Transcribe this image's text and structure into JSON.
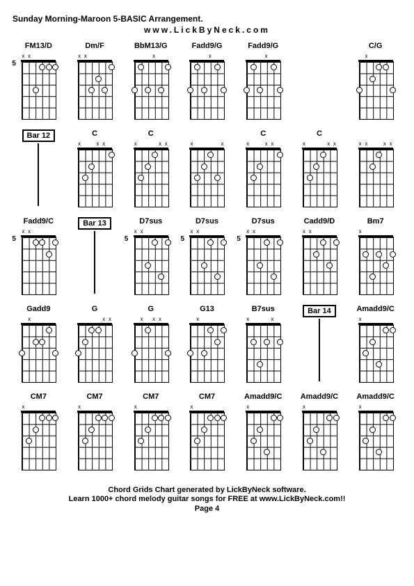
{
  "header": {
    "title": "Sunday Morning-Maroon 5-BASIC Arrangement.",
    "subtitle": "www.LickByNeck.com"
  },
  "footer": {
    "line1": "Chord Grids Chart generated by LickByNeck software.",
    "line2": "Learn 1000+ chord melody guitar songs for FREE at www.LickByNeck.com!!",
    "page": "Page 4"
  },
  "layout": {
    "columns": 7,
    "rows": 5,
    "grid_bg": "#ffffff",
    "line_color": "#000000"
  },
  "cells": [
    {
      "type": "chord",
      "label": "FM13/D",
      "fret": "5",
      "marks": [
        "x",
        "x",
        "",
        "",
        "",
        ""
      ],
      "dots": [
        [
          3,
          0
        ],
        [
          4,
          0
        ],
        [
          5,
          0
        ],
        [
          2,
          2
        ]
      ]
    },
    {
      "type": "chord",
      "label": "Dm/F",
      "fret": "",
      "marks": [
        "x",
        "x",
        "",
        "",
        "",
        ""
      ],
      "dots": [
        [
          2,
          2
        ],
        [
          3,
          1
        ],
        [
          4,
          2
        ],
        [
          5,
          0
        ]
      ]
    },
    {
      "type": "chord",
      "label": "BbM13/G",
      "fret": "",
      "marks": [
        "",
        "",
        "",
        "x",
        "",
        ""
      ],
      "dots": [
        [
          0,
          2
        ],
        [
          1,
          0
        ],
        [
          2,
          2
        ],
        [
          4,
          2
        ],
        [
          5,
          0
        ]
      ]
    },
    {
      "type": "chord",
      "label": "Fadd9/G",
      "fret": "",
      "marks": [
        "",
        "",
        "",
        "x",
        "",
        ""
      ],
      "dots": [
        [
          0,
          2
        ],
        [
          1,
          0
        ],
        [
          2,
          2
        ],
        [
          4,
          0
        ],
        [
          5,
          2
        ]
      ]
    },
    {
      "type": "chord",
      "label": "Fadd9/G",
      "fret": "",
      "marks": [
        "",
        "",
        "",
        "x",
        "",
        ""
      ],
      "dots": [
        [
          0,
          2
        ],
        [
          1,
          0
        ],
        [
          2,
          2
        ],
        [
          4,
          0
        ],
        [
          5,
          2
        ]
      ]
    },
    {
      "type": "empty"
    },
    {
      "type": "chord",
      "label": "C/G",
      "fret": "",
      "marks": [
        "",
        "x",
        "",
        "",
        "",
        ""
      ],
      "dots": [
        [
          0,
          2
        ],
        [
          2,
          1
        ],
        [
          3,
          0
        ],
        [
          4,
          0
        ],
        [
          5,
          2
        ]
      ]
    },
    {
      "type": "bar",
      "label": "Bar 12"
    },
    {
      "type": "chord",
      "label": "C",
      "fret": "",
      "marks": [
        "x",
        "",
        "",
        "x",
        "x",
        ""
      ],
      "dots": [
        [
          1,
          2
        ],
        [
          2,
          1
        ],
        [
          5,
          0
        ]
      ]
    },
    {
      "type": "chord",
      "label": "C",
      "fret": "",
      "marks": [
        "x",
        "",
        "",
        "",
        "x",
        "x"
      ],
      "dots": [
        [
          1,
          2
        ],
        [
          2,
          1
        ],
        [
          3,
          0
        ]
      ]
    },
    {
      "type": "chord",
      "label": "",
      "fret": "",
      "marks": [
        "x",
        "",
        "",
        "",
        "",
        "x"
      ],
      "dots": [
        [
          1,
          2
        ],
        [
          2,
          1
        ],
        [
          3,
          0
        ],
        [
          4,
          2
        ]
      ]
    },
    {
      "type": "chord",
      "label": "C",
      "fret": "",
      "marks": [
        "x",
        "",
        "",
        "x",
        "x",
        ""
      ],
      "dots": [
        [
          1,
          2
        ],
        [
          2,
          1
        ],
        [
          5,
          0
        ]
      ]
    },
    {
      "type": "chord",
      "label": "C",
      "fret": "",
      "marks": [
        "x",
        "",
        "",
        "",
        "x",
        "x"
      ],
      "dots": [
        [
          1,
          2
        ],
        [
          2,
          1
        ],
        [
          3,
          0
        ]
      ]
    },
    {
      "type": "chord",
      "label": "",
      "fret": "",
      "marks": [
        "x",
        "x",
        "",
        "",
        "x",
        "x"
      ],
      "dots": [
        [
          2,
          1
        ],
        [
          3,
          0
        ]
      ]
    },
    {
      "type": "chord",
      "label": "Fadd9/C",
      "fret": "5",
      "marks": [
        "x",
        "x",
        "",
        "",
        "",
        ""
      ],
      "dots": [
        [
          2,
          0
        ],
        [
          3,
          0
        ],
        [
          4,
          1
        ],
        [
          5,
          0
        ]
      ]
    },
    {
      "type": "bar",
      "label": "Bar 13"
    },
    {
      "type": "chord",
      "label": "D7sus",
      "fret": "5",
      "marks": [
        "x",
        "x",
        "",
        "",
        "",
        ""
      ],
      "dots": [
        [
          2,
          2
        ],
        [
          3,
          0
        ],
        [
          4,
          3
        ],
        [
          5,
          0
        ]
      ]
    },
    {
      "type": "chord",
      "label": "D7sus",
      "fret": "5",
      "marks": [
        "x",
        "x",
        "",
        "",
        "",
        ""
      ],
      "dots": [
        [
          2,
          2
        ],
        [
          3,
          0
        ],
        [
          4,
          3
        ],
        [
          5,
          0
        ]
      ]
    },
    {
      "type": "chord",
      "label": "D7sus",
      "fret": "5",
      "marks": [
        "x",
        "x",
        "",
        "",
        "",
        ""
      ],
      "dots": [
        [
          2,
          2
        ],
        [
          3,
          0
        ],
        [
          4,
          3
        ],
        [
          5,
          0
        ]
      ]
    },
    {
      "type": "chord",
      "label": "Cadd9/D",
      "fret": "",
      "marks": [
        "x",
        "x",
        "",
        "",
        "",
        ""
      ],
      "dots": [
        [
          2,
          1
        ],
        [
          3,
          0
        ],
        [
          4,
          2
        ],
        [
          5,
          0
        ]
      ]
    },
    {
      "type": "chord",
      "label": "Bm7",
      "fret": "",
      "marks": [
        "x",
        "",
        "",
        "",
        "",
        ""
      ],
      "dots": [
        [
          1,
          1
        ],
        [
          2,
          3
        ],
        [
          3,
          1
        ],
        [
          4,
          2
        ],
        [
          5,
          1
        ]
      ]
    },
    {
      "type": "chord",
      "label": "Gadd9",
      "fret": "",
      "marks": [
        "",
        "x",
        "",
        "",
        "",
        ""
      ],
      "dots": [
        [
          0,
          2
        ],
        [
          2,
          1
        ],
        [
          3,
          1
        ],
        [
          4,
          0
        ],
        [
          5,
          2
        ]
      ]
    },
    {
      "type": "chord",
      "label": "G",
      "fret": "",
      "marks": [
        "",
        "",
        "",
        "",
        "x",
        "x"
      ],
      "dots": [
        [
          0,
          2
        ],
        [
          1,
          1
        ],
        [
          2,
          0
        ],
        [
          3,
          0
        ]
      ]
    },
    {
      "type": "chord",
      "label": "G",
      "fret": "",
      "marks": [
        "",
        "x",
        "",
        "x",
        "x",
        ""
      ],
      "dots": [
        [
          0,
          2
        ],
        [
          2,
          0
        ],
        [
          5,
          2
        ]
      ]
    },
    {
      "type": "chord",
      "label": "G13",
      "fret": "",
      "marks": [
        "",
        "x",
        "",
        "",
        "",
        ""
      ],
      "dots": [
        [
          0,
          2
        ],
        [
          2,
          2
        ],
        [
          3,
          0
        ],
        [
          4,
          1
        ],
        [
          5,
          0
        ]
      ]
    },
    {
      "type": "chord",
      "label": "B7sus",
      "fret": "",
      "marks": [
        "x",
        "",
        "",
        "",
        "x",
        ""
      ],
      "dots": [
        [
          1,
          1
        ],
        [
          2,
          3
        ],
        [
          3,
          1
        ],
        [
          5,
          1
        ]
      ]
    },
    {
      "type": "bar",
      "label": "Bar 14"
    },
    {
      "type": "chord",
      "label": "Amadd9/C",
      "fret": "",
      "marks": [
        "x",
        "",
        "",
        "",
        "",
        ""
      ],
      "dots": [
        [
          1,
          2
        ],
        [
          2,
          1
        ],
        [
          3,
          3
        ],
        [
          4,
          0
        ],
        [
          5,
          0
        ]
      ]
    },
    {
      "type": "chord",
      "label": "CM7",
      "fret": "",
      "marks": [
        "x",
        "",
        "",
        "",
        "",
        ""
      ],
      "dots": [
        [
          1,
          2
        ],
        [
          2,
          1
        ],
        [
          3,
          0
        ],
        [
          4,
          0
        ],
        [
          5,
          0
        ]
      ]
    },
    {
      "type": "chord",
      "label": "CM7",
      "fret": "",
      "marks": [
        "x",
        "",
        "",
        "",
        "",
        ""
      ],
      "dots": [
        [
          1,
          2
        ],
        [
          2,
          1
        ],
        [
          3,
          0
        ],
        [
          4,
          0
        ],
        [
          5,
          0
        ]
      ]
    },
    {
      "type": "chord",
      "label": "CM7",
      "fret": "",
      "marks": [
        "x",
        "",
        "",
        "",
        "",
        ""
      ],
      "dots": [
        [
          1,
          2
        ],
        [
          2,
          1
        ],
        [
          3,
          0
        ],
        [
          4,
          0
        ],
        [
          5,
          0
        ]
      ]
    },
    {
      "type": "chord",
      "label": "CM7",
      "fret": "",
      "marks": [
        "x",
        "",
        "",
        "",
        "",
        ""
      ],
      "dots": [
        [
          1,
          2
        ],
        [
          2,
          1
        ],
        [
          3,
          0
        ],
        [
          4,
          0
        ],
        [
          5,
          0
        ]
      ]
    },
    {
      "type": "chord",
      "label": "Amadd9/C",
      "fret": "",
      "marks": [
        "x",
        "",
        "",
        "",
        "",
        ""
      ],
      "dots": [
        [
          1,
          2
        ],
        [
          2,
          1
        ],
        [
          3,
          3
        ],
        [
          4,
          0
        ],
        [
          5,
          0
        ]
      ]
    },
    {
      "type": "chord",
      "label": "Amadd9/C",
      "fret": "",
      "marks": [
        "x",
        "",
        "",
        "",
        "",
        ""
      ],
      "dots": [
        [
          1,
          2
        ],
        [
          2,
          1
        ],
        [
          3,
          3
        ],
        [
          4,
          0
        ],
        [
          5,
          0
        ]
      ]
    },
    {
      "type": "chord",
      "label": "Amadd9/C",
      "fret": "",
      "marks": [
        "x",
        "",
        "",
        "",
        "",
        ""
      ],
      "dots": [
        [
          1,
          2
        ],
        [
          2,
          1
        ],
        [
          3,
          3
        ],
        [
          4,
          0
        ],
        [
          5,
          0
        ]
      ]
    }
  ]
}
